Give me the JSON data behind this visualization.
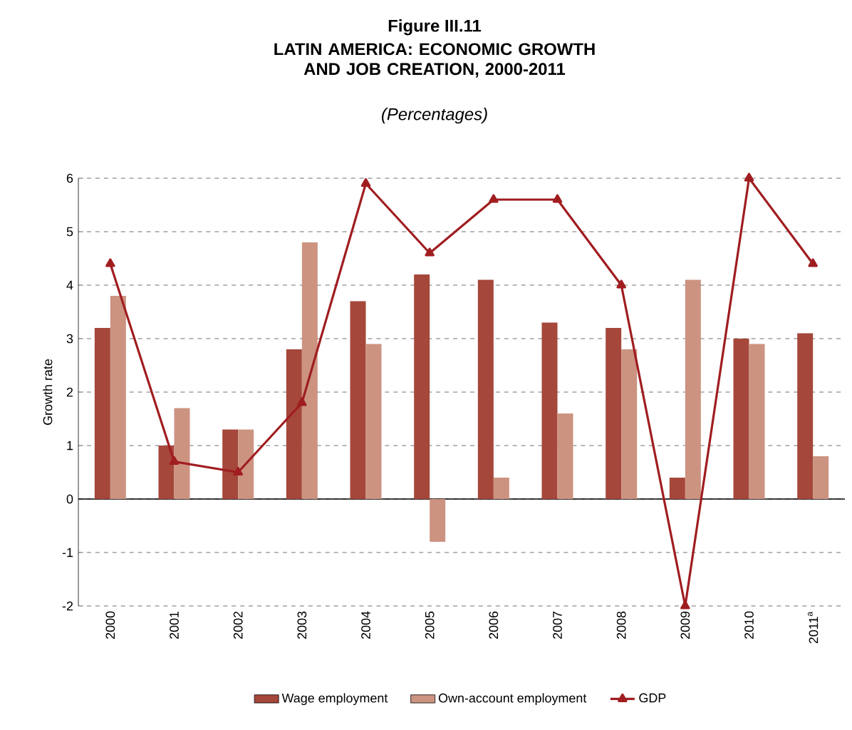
{
  "chart_data": {
    "type": "bar",
    "title": "LATIN AMERICA: ECONOMIC GROWTH AND JOB CREATION, 2000-2011",
    "subtitle": "(Percentages)",
    "annotations": [
      "Figure III.11"
    ],
    "ylabel": "Growth rate",
    "categories": [
      "2000",
      "2001",
      "2002",
      "2003",
      "2004",
      "2005",
      "2006",
      "2007",
      "2008",
      "2009",
      "2010",
      "2011$^{a}$"
    ],
    "series": [
      {
        "name": "Wage employment",
        "color": "#a5473a",
        "values": [
          3.2,
          1.0,
          1.3,
          2.8,
          3.7,
          4.2,
          4.1,
          3.3,
          3.2,
          0.4,
          3.0,
          3.1
        ]
      },
      {
        "name": "Own-account employment",
        "color": "#cc9381",
        "values": [
          3.8,
          1.7,
          1.3,
          4.8,
          2.9,
          -0.8,
          0.4,
          1.6,
          2.8,
          4.1,
          2.9,
          0.8
        ]
      },
      {
        "name": "GDP",
        "type": "line",
        "marker": "triangle",
        "color": "#a01d20",
        "values": [
          4.4,
          0.7,
          0.5,
          1.8,
          5.9,
          4.6,
          5.6,
          5.6,
          4.0,
          -2.0,
          6.0,
          4.4
        ]
      }
    ],
    "ylim": [
      -2,
      6
    ],
    "yticks": [
      -2,
      -1,
      0,
      1,
      2,
      3,
      4,
      5,
      6
    ],
    "grid": "y",
    "legend": "bottom"
  }
}
